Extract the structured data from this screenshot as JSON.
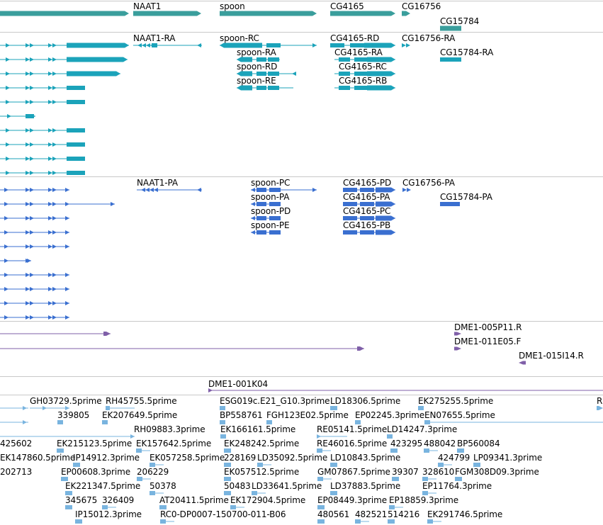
{
  "colors": {
    "gene": "#3a9e9c",
    "transcript": "#1ba3ba",
    "protein": "#3a6fd0",
    "clone": "#7f5fa8",
    "est": "#79b4df",
    "divider": "#c8c8c8"
  },
  "tracks": {
    "genes": {
      "labels": [
        "NAAT1",
        "spoon",
        "CG4165",
        "CG16756",
        "CG15784"
      ]
    },
    "transcripts": {
      "labels": [
        "NAAT1-RA",
        "spoon-RC",
        "CG4165-RD",
        "CG16756-RA",
        "spoon-RA",
        "CG4165-RA",
        "CG15784-RA",
        "spoon-RD",
        "CG4165-RC",
        "spoon-RE",
        "CG4165-RB"
      ]
    },
    "proteins": {
      "labels": [
        "NAAT1-PA",
        "spoon-PC",
        "CG4165-PD",
        "CG16756-PA",
        "spoon-PA",
        "CG4165-PA",
        "CG15784-PA",
        "spoon-PD",
        "CG4165-PC",
        "spoon-PE",
        "CG4165-PB"
      ]
    },
    "clones": {
      "labels": [
        "DME1-005P11.R",
        "DME1-011E05.F",
        "DME1-015I14.R"
      ]
    },
    "bac": {
      "labels": [
        "DME1-001K04"
      ]
    },
    "ests": {
      "labels": [
        "GH03729.5prime",
        "RH45755.5prime",
        "ESG019c.E21_G10.3prime",
        "LD18306.5prime",
        "EK275255.5prime",
        "R",
        "339805",
        "EK207649.5prime",
        "BP558761",
        "FGH123E02.5prime",
        "EP02245.3prime",
        "EN07655.5prime",
        "RH09883.3prime",
        "EK166161.5prime",
        "RE05141.5prime",
        "LD14247.3prime",
        "425602",
        "EK215123.5prime",
        "EK157642.5prime",
        "EK248242.5prime",
        "RE46016.5prime",
        "423295",
        "488042",
        "BP560084",
        "EK147860.5prime",
        "IP14912.3prime",
        "EK057258.5prime",
        "228169",
        "LD35092.5prime",
        "LD10843.5prime",
        "424799",
        "LP09341.3prime",
        "202713",
        "EP00608.3prime",
        "206229",
        "EK057512.5prime",
        "GM07867.5prime",
        "39307",
        "328610",
        "FGM308D09.3prime",
        "EK221347.5prime",
        "50378",
        "50483",
        "LD33641.5prime",
        "LD37883.5prime",
        "EP11764.3prime",
        "345675",
        "326409",
        "AT20411.5prime",
        "EK172904.5prime",
        "EP08449.3prime",
        "EP18859.3prime",
        "IP15012.3prime",
        "RC0-DP0007-150700-011-B06",
        "480561",
        "482521",
        "514216",
        "EK291746.5prime"
      ]
    }
  }
}
